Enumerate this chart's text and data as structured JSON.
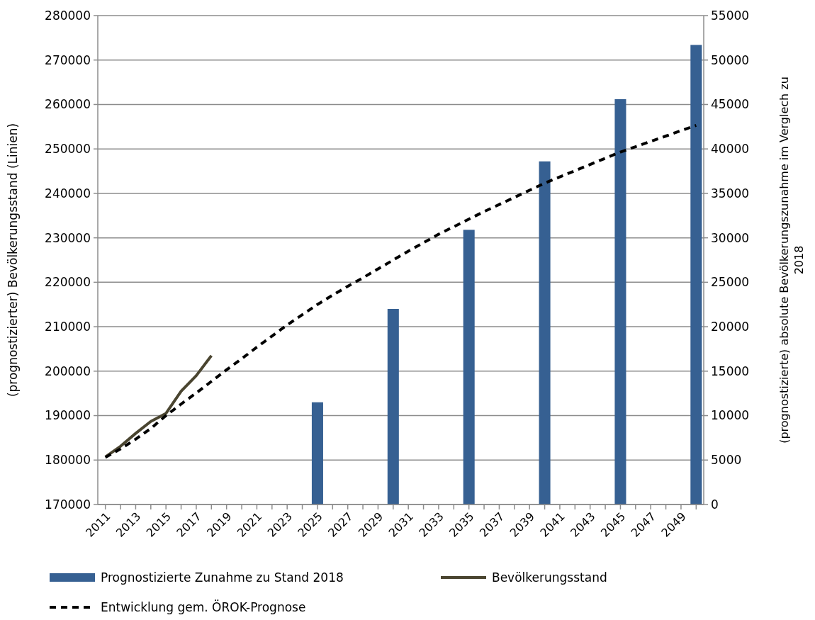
{
  "chart_data": {
    "type": "bar",
    "ylabel": "(prognostizierter) Bevölkerungsstand (Linien)",
    "y2label": "(prognostizierte) absolute Bevölkerungszunahme im Verglech zu 2018",
    "categories": [
      "2011",
      null,
      "2013",
      null,
      "2015",
      null,
      "2017",
      null,
      "2019",
      null,
      "2021",
      null,
      "2023",
      null,
      "2025",
      null,
      "2027",
      null,
      "2029",
      null,
      "2031",
      null,
      "2033",
      null,
      "2035",
      null,
      "2037",
      null,
      "2039",
      null,
      "2041",
      null,
      "2043",
      null,
      "2045",
      null,
      "2047",
      null,
      "2049",
      null
    ],
    "series": [
      {
        "name": "Prognostizierte Zunahme zu Stand 2018",
        "type": "bar",
        "axis": "y2",
        "color": "#366092",
        "values": [
          null,
          null,
          null,
          null,
          null,
          null,
          null,
          null,
          null,
          null,
          null,
          null,
          null,
          null,
          11500,
          null,
          null,
          null,
          null,
          22000,
          null,
          null,
          null,
          null,
          30900,
          null,
          null,
          null,
          null,
          38600,
          null,
          null,
          null,
          null,
          45600,
          null,
          null,
          null,
          null,
          51700
        ]
      },
      {
        "name": "Bevölkerungsstand",
        "type": "line",
        "color": "#4a4530",
        "line_style": "solid",
        "values": [
          180700,
          183100,
          186000,
          188700,
          190500,
          195500,
          199000,
          203500,
          null,
          null,
          null,
          null,
          null,
          null,
          null,
          null,
          null,
          null,
          null,
          null,
          null,
          null,
          null,
          null,
          null,
          null,
          null,
          null,
          null,
          null,
          null,
          null,
          null,
          null,
          null,
          null,
          null,
          null,
          null,
          null
        ]
      },
      {
        "name": "Entwicklung gem. ÖROK-Prognose",
        "type": "line",
        "color": "#000000",
        "line_style": "dashed",
        "values": [
          180600,
          182500,
          184700,
          187100,
          190000,
          192600,
          195100,
          197700,
          200300,
          202800,
          205400,
          207900,
          210400,
          212700,
          215000,
          217100,
          219100,
          221000,
          223000,
          225000,
          227000,
          228900,
          230800,
          232500,
          234200,
          235900,
          237500,
          239100,
          240700,
          242300,
          243700,
          245100,
          246500,
          247900,
          249300,
          250500,
          251700,
          252900,
          254100,
          255300
        ]
      }
    ],
    "ylim": [
      170000,
      280000
    ],
    "yticks": [
      170000,
      180000,
      190000,
      200000,
      210000,
      220000,
      230000,
      240000,
      250000,
      260000,
      270000,
      280000
    ],
    "y2lim": [
      0,
      55000
    ],
    "y2ticks": [
      0,
      5000,
      10000,
      15000,
      20000,
      25000,
      30000,
      35000,
      40000,
      45000,
      50000,
      55000
    ],
    "grid": "y",
    "legend": "bottom"
  }
}
